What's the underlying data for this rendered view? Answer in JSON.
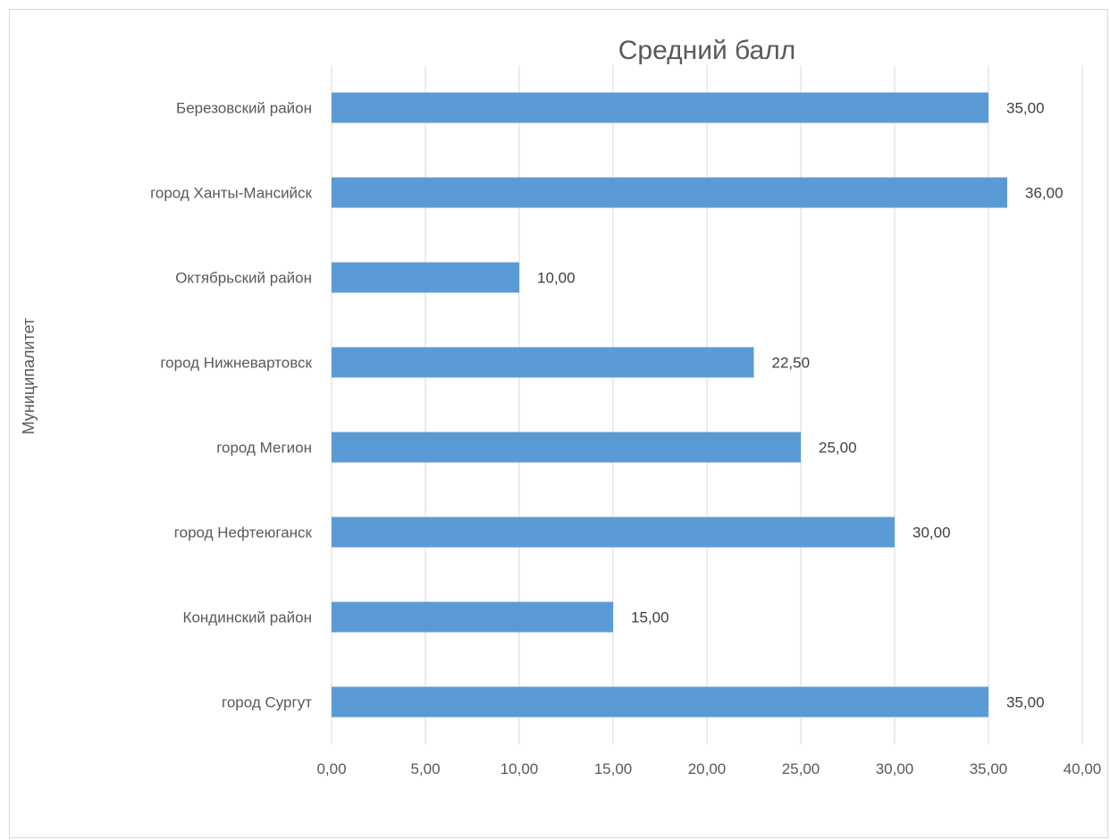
{
  "chart_data": {
    "type": "bar",
    "orientation": "horizontal",
    "title": "Средний балл",
    "xlabel": "",
    "ylabel": "Муниципалитет",
    "categories": [
      "Березовский район",
      "город Ханты-Мансийск",
      "Октябрьский район",
      "город Нижневартовск",
      "город Мегион",
      "город Нефтеюганск",
      "Кондинский район",
      "город Сургут"
    ],
    "values": [
      35,
      36,
      10,
      22.5,
      25,
      30,
      15,
      35
    ],
    "data_labels": [
      "35,00",
      "36,00",
      "10,00",
      "22,50",
      "25,00",
      "30,00",
      "15,00",
      "35,00"
    ],
    "xlim": [
      0,
      40
    ],
    "tick_labels": [
      "0,00",
      "5,00",
      "10,00",
      "15,00",
      "20,00",
      "25,00",
      "30,00",
      "35,00",
      "40,00"
    ],
    "grid": true,
    "legend": "none",
    "bar_color": "#5b9bd5",
    "grid_color": "#d9d9d9"
  }
}
